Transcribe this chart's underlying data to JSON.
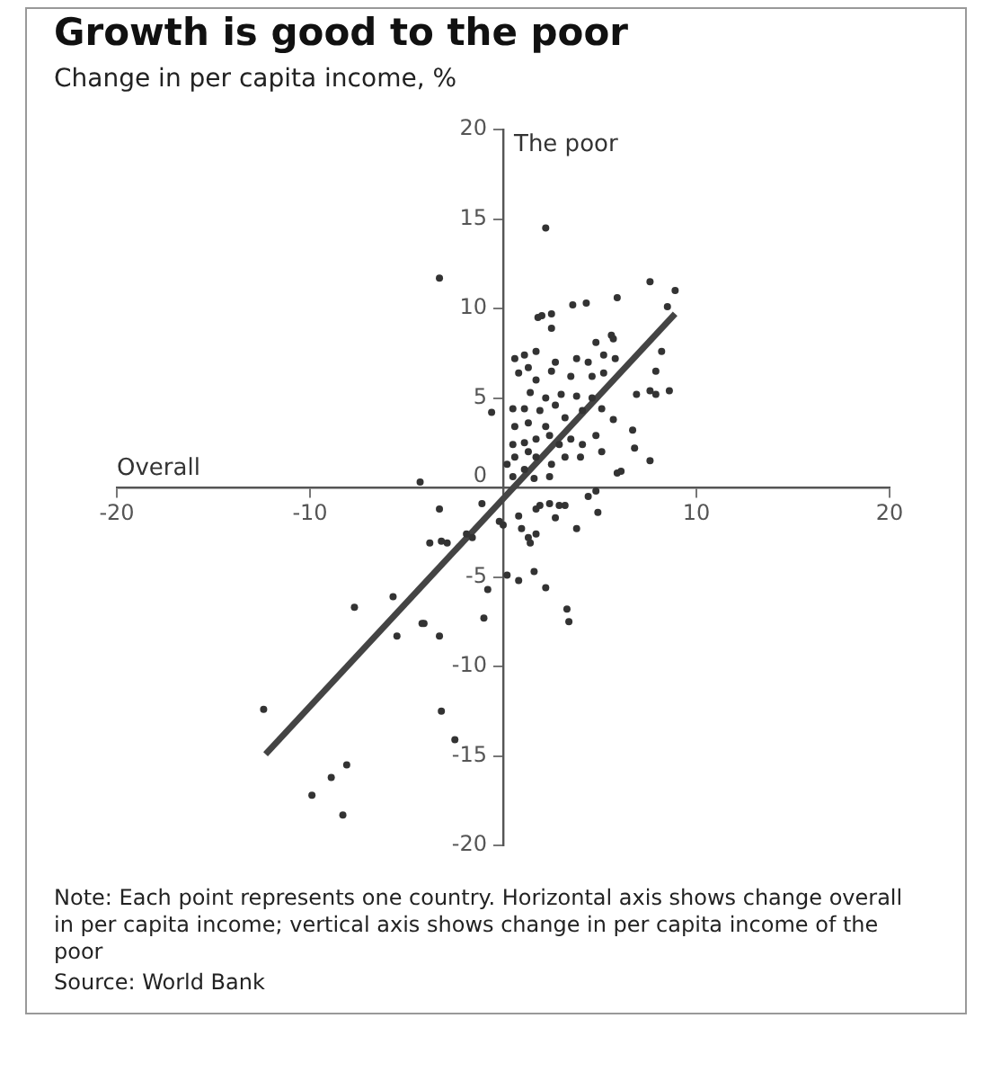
{
  "chart_data": {
    "type": "scatter",
    "title": "Growth is good to the poor",
    "subtitle": "Change in per capita income, %",
    "xlabel": "Overall",
    "ylabel": "The poor",
    "annotations": [
      "Note: Each point represents one country. Horizontal axis shows change overall in per capita income; vertical axis shows change in per capita income of the poor",
      "Source: World Bank"
    ],
    "xlim": [
      -20,
      20
    ],
    "xticks": [
      -20,
      -10,
      10,
      20
    ],
    "ylim": [
      -20,
      20
    ],
    "yticks": [
      -20,
      -15,
      -10,
      -5,
      0,
      5,
      10,
      15,
      20
    ],
    "grid": false,
    "legend": false,
    "marker": "circle",
    "series": [
      {
        "color": "#333333",
        "x": [
          -3.3,
          7.6,
          8.9,
          1.8,
          2.0,
          2.5,
          2.5,
          3.6,
          4.3,
          5.9,
          5.6,
          5.7,
          8.5,
          8.2,
          7.9,
          6.9,
          7.6,
          7.9,
          8.6,
          6.7,
          6.8,
          7.6,
          5.9,
          6.1,
          -4.3,
          -0.6,
          0.6,
          1.1,
          1.7,
          1.3,
          0.8,
          1.7,
          2.7,
          2.5,
          3.5,
          3.8,
          4.4,
          4.8,
          4.6,
          5.2,
          5.8,
          5.2,
          1.4,
          2.2,
          3.0,
          3.8,
          4.6,
          0.5,
          1.1,
          1.9,
          2.7,
          0.6,
          1.3,
          2.2,
          3.2,
          4.1,
          5.1,
          5.7,
          0.5,
          1.1,
          1.7,
          2.4,
          2.9,
          3.5,
          4.1,
          4.8,
          5.1,
          1.7,
          2.5,
          3.2,
          4.0,
          1.1,
          0.5,
          1.6,
          2.4,
          0.6,
          0.2,
          1.3,
          2.2,
          -3.3,
          -1.1,
          -3.8,
          -3.2,
          -2.9,
          -1.6,
          -1.9,
          -0.2,
          0.0,
          0.8,
          0.95,
          1.3,
          1.4,
          1.7,
          1.9,
          2.4,
          1.7,
          2.9,
          3.2,
          2.7,
          3.8,
          4.4,
          4.8,
          4.9,
          0.2,
          0.8,
          -0.8,
          1.6,
          2.2,
          3.3,
          3.4,
          -1.0,
          -4.1,
          -3.3,
          -7.7,
          -5.7,
          -5.5,
          -4.2,
          -12.4,
          -8.1,
          -8.9,
          -9.9,
          -8.3,
          -3.2,
          -2.5
        ],
        "values": [
          11.7,
          11.5,
          11.0,
          9.5,
          9.6,
          9.7,
          8.9,
          10.2,
          10.3,
          10.6,
          8.5,
          8.3,
          10.1,
          7.6,
          6.5,
          5.2,
          5.4,
          5.2,
          5.4,
          3.2,
          2.2,
          1.5,
          0.8,
          0.9,
          0.3,
          4.2,
          7.2,
          7.4,
          7.6,
          6.7,
          6.4,
          6.0,
          7.0,
          6.5,
          6.2,
          7.2,
          7.0,
          8.1,
          6.2,
          7.4,
          7.2,
          6.4,
          5.3,
          5.0,
          5.2,
          5.1,
          5.0,
          4.4,
          4.4,
          4.3,
          4.6,
          3.4,
          3.6,
          3.4,
          3.9,
          4.3,
          4.4,
          3.8,
          2.4,
          2.5,
          2.7,
          2.9,
          2.4,
          2.7,
          2.4,
          2.9,
          2.0,
          1.7,
          1.3,
          1.7,
          1.7,
          1.0,
          0.6,
          0.5,
          0.6,
          1.7,
          1.3,
          2.0,
          14.5,
          -1.2,
          -0.9,
          -3.1,
          -3.0,
          -3.1,
          -2.8,
          -2.6,
          -1.9,
          -2.1,
          -1.6,
          -2.3,
          -2.8,
          -3.1,
          -2.6,
          -1.0,
          -0.9,
          -1.2,
          -1.0,
          -1.0,
          -1.7,
          -2.3,
          -0.5,
          -0.2,
          -1.4,
          -4.9,
          -5.2,
          -5.7,
          -4.7,
          -5.6,
          -6.8,
          -7.5,
          -7.3,
          -7.6,
          -8.3,
          -6.7,
          -6.1,
          -8.3,
          -7.6,
          -12.4,
          -15.5,
          -16.2,
          -17.2,
          -18.3,
          -12.5,
          -14.1
        ]
      },
      {
        "type": "line",
        "color": "#444444",
        "marker": "none",
        "x": [
          -12.3,
          8.9
        ],
        "values": [
          -14.9,
          9.7
        ]
      }
    ]
  }
}
